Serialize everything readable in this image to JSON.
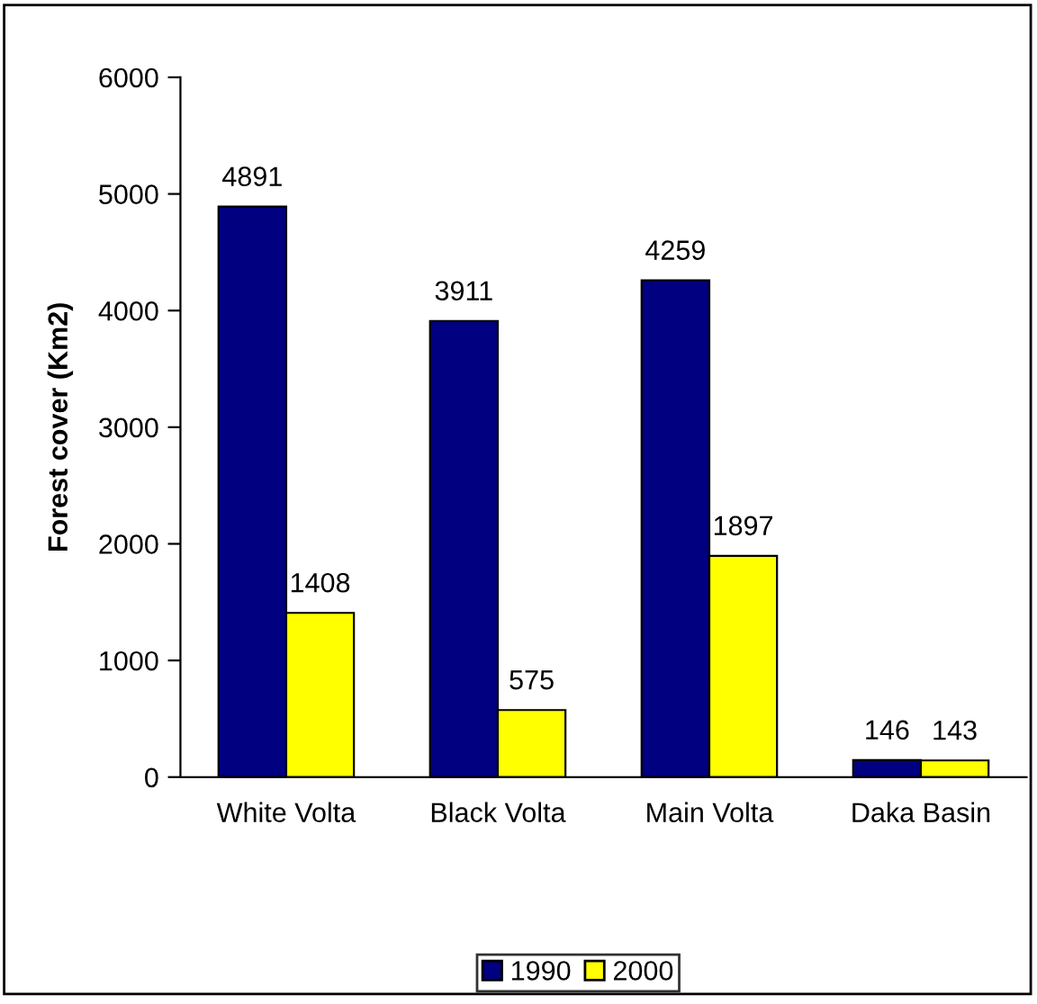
{
  "chart_data": {
    "type": "bar",
    "ylabel": "Forest cover (Km2)",
    "categories": [
      "White Volta",
      "Black Volta",
      "Main Volta",
      "Daka Basin"
    ],
    "series": [
      {
        "name": "1990",
        "color": "#000080",
        "values": [
          4891,
          3911,
          4259,
          146
        ]
      },
      {
        "name": "2000",
        "color": "#ffff00",
        "values": [
          1408,
          575,
          1897,
          143
        ]
      }
    ],
    "ylim": [
      0,
      6000
    ],
    "yticks": [
      0,
      1000,
      2000,
      3000,
      4000,
      5000,
      6000
    ],
    "grid": false,
    "legend": "bottom",
    "data_labels": true
  }
}
